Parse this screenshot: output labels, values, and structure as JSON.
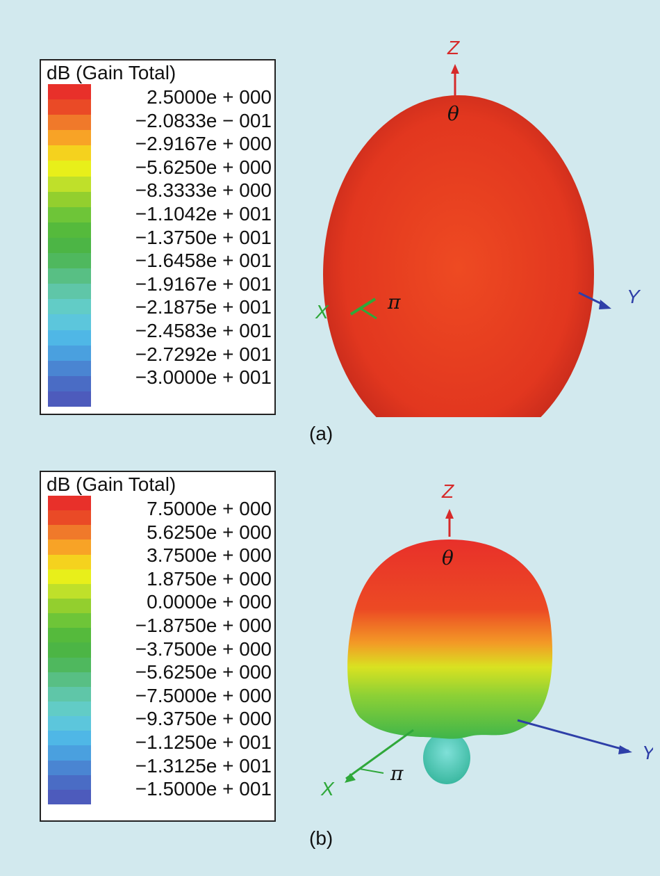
{
  "figures": [
    {
      "legend_title": "dB (Gain Total)",
      "ticks": [
        "2.5000e + 000",
        "−2.0833e − 001",
        "−2.9167e + 000",
        "−5.6250e + 000",
        "−8.3333e + 000",
        "−1.1042e + 001",
        "−1.3750e + 001",
        "−1.6458e + 001",
        "−1.9167e + 001",
        "−2.1875e + 001",
        "−2.4583e + 001",
        "−2.7292e + 001",
        "−3.0000e + 001"
      ],
      "axes": {
        "z": "Z",
        "x": "X",
        "y": "Y",
        "theta": "θ",
        "pi": "π"
      },
      "caption": "(a)"
    },
    {
      "legend_title": "dB (Gain Total)",
      "ticks": [
        "7.5000e + 000",
        "5.6250e + 000",
        "3.7500e + 000",
        "1.8750e + 000",
        "0.0000e + 000",
        "−1.8750e + 000",
        "−3.7500e + 000",
        "−5.6250e + 000",
        "−7.5000e + 000",
        "−9.3750e + 000",
        "−1.1250e + 001",
        "−1.3125e + 001",
        "−1.5000e + 001"
      ],
      "axes": {
        "z": "Z",
        "x": "X",
        "y": "Y",
        "theta": "θ",
        "pi": "π"
      },
      "caption": "(b)"
    }
  ],
  "colors": {
    "background": "#d2e9ee",
    "colorbar": [
      "#e8302a",
      "#ea4a26",
      "#f0792a",
      "#f8a326",
      "#f5d21e",
      "#e8ef1a",
      "#bfe02a",
      "#93cf2e",
      "#6ec538",
      "#55ba3c",
      "#4cb545",
      "#4fb85e",
      "#58bf84",
      "#5fc6a8",
      "#62ccc6",
      "#5cc6dc",
      "#4fb7e6",
      "#4aa0df",
      "#4a85d2",
      "#4a6cc5",
      "#4d5bbc"
    ],
    "axis_z": "#d62a2a",
    "axis_x": "#2fa83a",
    "axis_y": "#2e3fa8"
  }
}
